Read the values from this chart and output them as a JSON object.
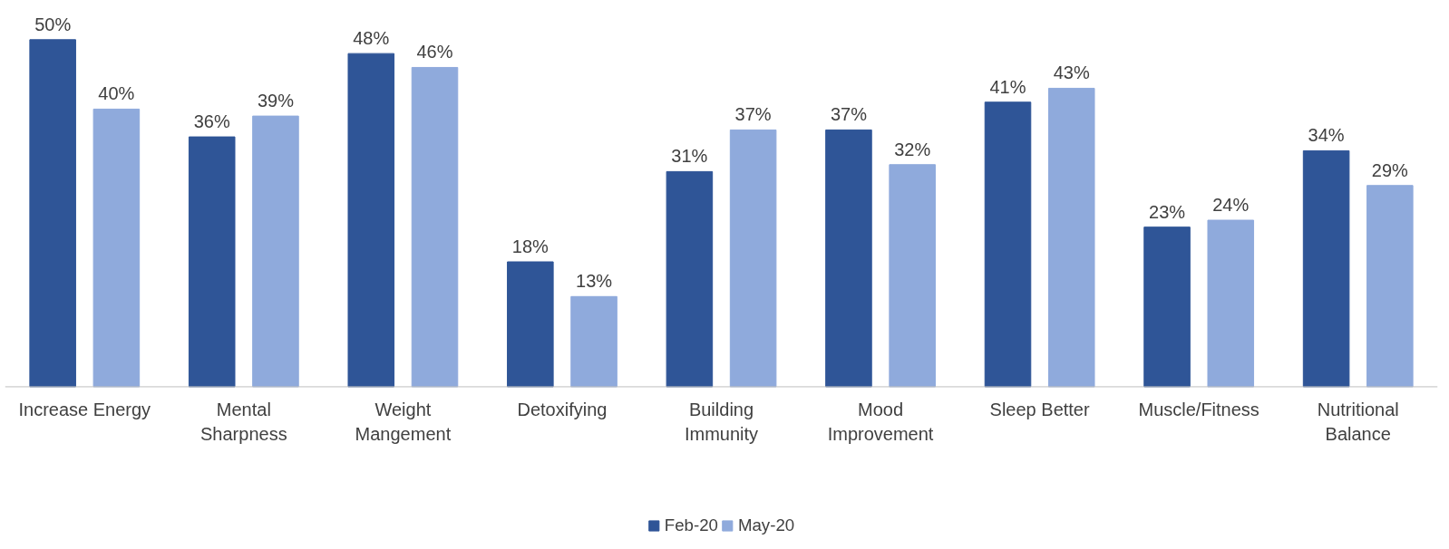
{
  "chart_data": {
    "type": "bar",
    "categories": [
      "Increase Energy",
      "Mental\nSharpness",
      "Weight\nMangement",
      "Detoxifying",
      "Building\nImmunity",
      "Mood\nImprovement",
      "Sleep Better",
      "Muscle/Fitness",
      "Nutritional\nBalance"
    ],
    "series": [
      {
        "name": "Feb-20",
        "color": "#2f5597",
        "values": [
          50,
          36,
          48,
          18,
          31,
          37,
          41,
          23,
          34
        ],
        "value_labels": [
          "50%",
          "36%",
          "48%",
          "18%",
          "31%",
          "37%",
          "41%",
          "23%",
          "34%"
        ]
      },
      {
        "name": "May-20",
        "color": "#8faadc",
        "values": [
          40,
          39,
          46,
          13,
          37,
          32,
          43,
          24,
          29
        ],
        "value_labels": [
          "40%",
          "39%",
          "46%",
          "13%",
          "37%",
          "32%",
          "43%",
          "24%",
          "29%"
        ]
      }
    ],
    "legend": "bottom",
    "grid": false,
    "tick_labels": "x"
  }
}
